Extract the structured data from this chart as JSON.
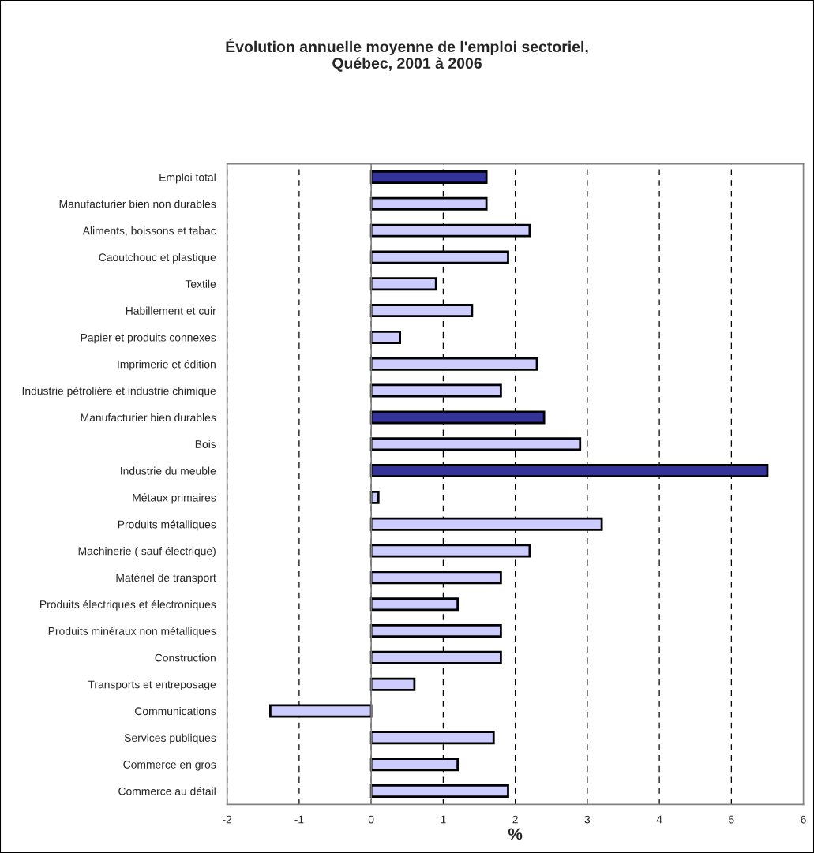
{
  "chart_data": {
    "type": "bar",
    "orientation": "horizontal",
    "title": "Évolution annuelle moyenne de l'emploi sectoriel,\nQuébec, 2001 à 2006",
    "xlabel": "%",
    "categories": [
      "Emploi total",
      "Manufacturier bien non durables",
      "Aliments, boissons et tabac",
      "Caoutchouc et plastique",
      "Textile",
      "Habillement et cuir",
      "Papier et produits connexes",
      "Imprimerie et édition",
      "Industrie pétrolière et industrie chimique",
      "Manufacturier bien durables",
      "Bois",
      "Industrie du meuble",
      "Métaux primaires",
      "Produits métalliques",
      "Machinerie ( sauf électrique)",
      "Matériel de transport",
      "Produits électriques et électroniques",
      "Produits minéraux non métalliques",
      "Construction",
      "Transports et entreposage",
      "Communications",
      "Services publiques",
      "Commerce en gros",
      "Commerce au détail"
    ],
    "values": [
      1.6,
      1.6,
      2.2,
      1.9,
      0.9,
      1.4,
      0.4,
      2.3,
      1.8,
      2.4,
      2.9,
      5.5,
      0.1,
      3.2,
      2.2,
      1.8,
      1.2,
      1.8,
      1.8,
      0.6,
      -1.4,
      1.7,
      1.2,
      1.9
    ],
    "colors": [
      "#333399",
      "#ccccff",
      "#ccccff",
      "#ccccff",
      "#ccccff",
      "#ccccff",
      "#ccccff",
      "#ccccff",
      "#ccccff",
      "#333399",
      "#ccccff",
      "#333399",
      "#ccccff",
      "#ccccff",
      "#ccccff",
      "#ccccff",
      "#ccccff",
      "#ccccff",
      "#ccccff",
      "#ccccff",
      "#ccccff",
      "#ccccff",
      "#ccccff",
      "#ccccff"
    ],
    "xlim": [
      -2,
      6
    ],
    "xticks": [
      -2,
      -1,
      0,
      1,
      2,
      3,
      4,
      5,
      6
    ],
    "grid": "x",
    "line_style": "dashed",
    "legend": false
  }
}
